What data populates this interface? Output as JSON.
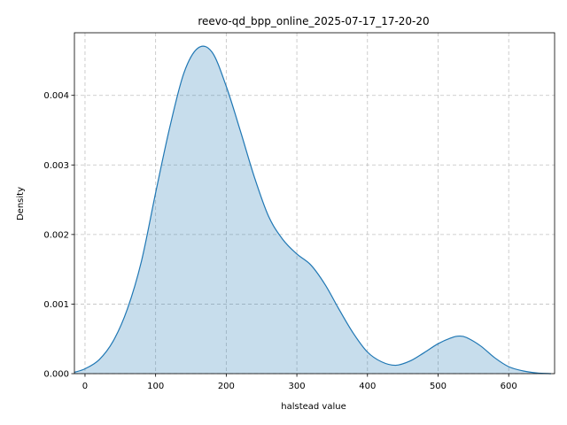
{
  "chart_data": {
    "type": "area",
    "title": "reevo-qd_bpp_online_2025-07-17_17-20-20",
    "xlabel": "halstead value",
    "ylabel": "Density",
    "xlim": [
      -15,
      665
    ],
    "ylim": [
      0,
      0.0049
    ],
    "x_ticks": [
      0,
      100,
      200,
      300,
      400,
      500,
      600
    ],
    "x_tick_labels": [
      "0",
      "100",
      "200",
      "300",
      "400",
      "500",
      "600"
    ],
    "y_ticks": [
      0,
      0.001,
      0.002,
      0.003,
      0.004
    ],
    "y_tick_labels": [
      "0.000",
      "0.001",
      "0.002",
      "0.003",
      "0.004"
    ],
    "grid": true,
    "legend": "none",
    "colors": {
      "line": "#1f77b4",
      "fill": "#1f77b4",
      "fill_alpha": 0.25,
      "grid": "#b0b0b0"
    },
    "series": [
      {
        "x": [
          -15,
          0,
          20,
          40,
          60,
          80,
          100,
          120,
          140,
          160,
          180,
          200,
          220,
          240,
          260,
          280,
          300,
          320,
          340,
          360,
          380,
          400,
          420,
          440,
          460,
          480,
          500,
          520,
          530,
          540,
          560,
          580,
          600,
          620,
          640,
          660
        ],
        "y": [
          2e-05,
          7e-05,
          0.0002,
          0.00047,
          0.00093,
          0.00162,
          0.0026,
          0.00354,
          0.00432,
          0.00468,
          0.00462,
          0.00413,
          0.00349,
          0.00282,
          0.00226,
          0.00193,
          0.00172,
          0.00156,
          0.00128,
          0.00092,
          0.00058,
          0.00031,
          0.00017,
          0.00012,
          0.00018,
          0.0003,
          0.00043,
          0.00052,
          0.00054,
          0.00052,
          0.0004,
          0.00023,
          0.0001,
          4e-05,
          1e-05,
          0.0
        ]
      }
    ]
  }
}
